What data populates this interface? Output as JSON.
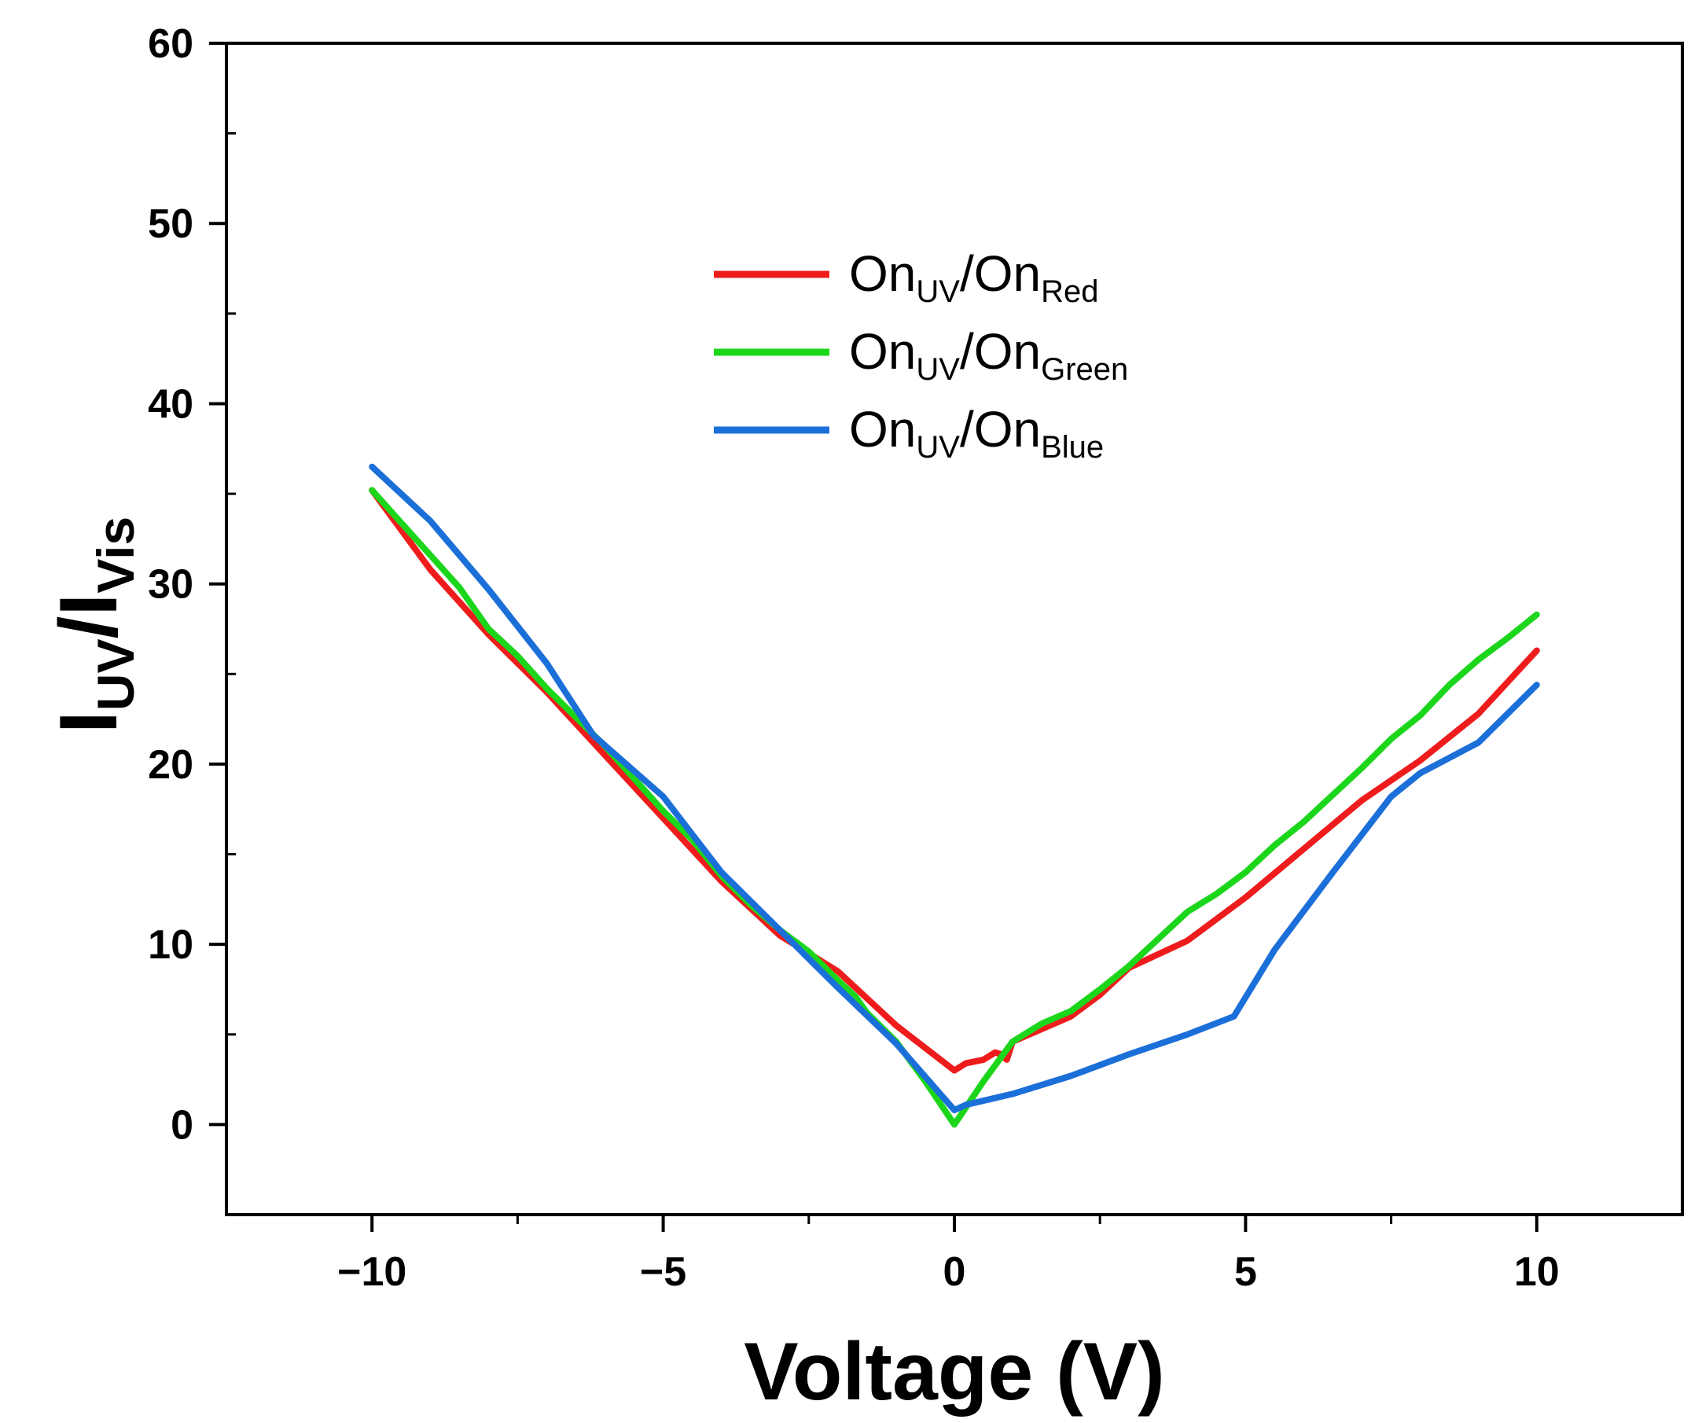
{
  "chart_data": {
    "type": "line",
    "title": "",
    "xlabel": "Voltage (V)",
    "ylabel": {
      "main": "I",
      "sub1": "UV",
      "sep": "/I",
      "sub2": "Vis"
    },
    "xlim": [
      -12.5,
      12.5
    ],
    "ylim": [
      -5,
      60
    ],
    "xticks": [
      -10,
      -5,
      0,
      5,
      10
    ],
    "xtick_labels": [
      "−10",
      "−5",
      "0",
      "5",
      "10"
    ],
    "xminor": [
      -7.5,
      -2.5,
      2.5,
      7.5
    ],
    "yticks": [
      0,
      10,
      20,
      30,
      40,
      50,
      60
    ],
    "ytick_labels": [
      "0",
      "10",
      "20",
      "30",
      "40",
      "50",
      "60"
    ],
    "yminor": [
      5,
      15,
      25,
      35,
      45,
      55
    ],
    "legend_position": "upper-center",
    "series": [
      {
        "name": "OnUV/OnRed",
        "label_main": "On",
        "label_sub1": "UV",
        "label_sep": "/On",
        "label_sub2": "Red",
        "color": "#ee1c1c",
        "x": [
          -10,
          -9,
          -8,
          -7,
          -6,
          -5,
          -4,
          -3,
          -2,
          -1,
          0,
          0.2,
          0.5,
          0.7,
          0.8,
          0.9,
          1.0,
          1.5,
          2.0,
          2.5,
          3.0,
          4.0,
          5.0,
          6.0,
          7.0,
          8.0,
          9.0,
          10.0
        ],
        "y": [
          35.2,
          30.8,
          27.2,
          24,
          20.5,
          17,
          13.5,
          10.5,
          8.5,
          5.5,
          3.0,
          3.4,
          3.6,
          4.0,
          3.9,
          3.6,
          4.6,
          5.3,
          6.0,
          7.2,
          8.7,
          10.2,
          12.6,
          15.3,
          18.0,
          20.2,
          22.8,
          26.3
        ]
      },
      {
        "name": "OnUV/OnGreen",
        "label_main": "On",
        "label_sub1": "UV",
        "label_sep": "/On",
        "label_sub2": "Green",
        "color": "#1bd61b",
        "x": [
          -10,
          -9.5,
          -9,
          -8.5,
          -8,
          -7.5,
          -7,
          -6.5,
          -6,
          -5.5,
          -5,
          -4.5,
          -4,
          -3.5,
          -3,
          -2.5,
          -2,
          -1.7,
          -1.5,
          -1,
          -0.5,
          0,
          0.5,
          1,
          1.5,
          2,
          2.5,
          3,
          3.5,
          4,
          4.5,
          5,
          5.5,
          6,
          6.5,
          7,
          7.5,
          8,
          8.5,
          9,
          9.5,
          10
        ],
        "y": [
          35.2,
          33.4,
          31.6,
          29.8,
          27.5,
          26,
          24.2,
          22.6,
          21,
          19.2,
          17.4,
          15.8,
          13.8,
          12.2,
          10.8,
          9.6,
          8.0,
          7.1,
          6.2,
          4.6,
          2.4,
          0.0,
          2.4,
          4.6,
          5.6,
          6.3,
          7.5,
          8.8,
          10.3,
          11.8,
          12.8,
          14.0,
          15.5,
          16.8,
          18.3,
          19.8,
          21.4,
          22.7,
          24.4,
          25.8,
          27.0,
          28.3
        ]
      },
      {
        "name": "OnUV/OnBlue",
        "label_main": "On",
        "label_sub1": "UV",
        "label_sep": "/On",
        "label_sub2": "Blue",
        "color": "#1b6fd8",
        "x": [
          -10,
          -9,
          -8,
          -7,
          -6.2,
          -5,
          -4,
          -3,
          -2,
          -1,
          0,
          0.2,
          1,
          2,
          3,
          4,
          4.8,
          5.5,
          6.5,
          7.5,
          8,
          9,
          10
        ],
        "y": [
          36.5,
          33.5,
          29.7,
          25.6,
          21.6,
          18.2,
          14.0,
          10.8,
          7.6,
          4.5,
          0.8,
          1.1,
          1.7,
          2.7,
          3.9,
          5.0,
          6.0,
          9.7,
          14.0,
          18.2,
          19.5,
          21.2,
          24.4
        ]
      }
    ]
  }
}
